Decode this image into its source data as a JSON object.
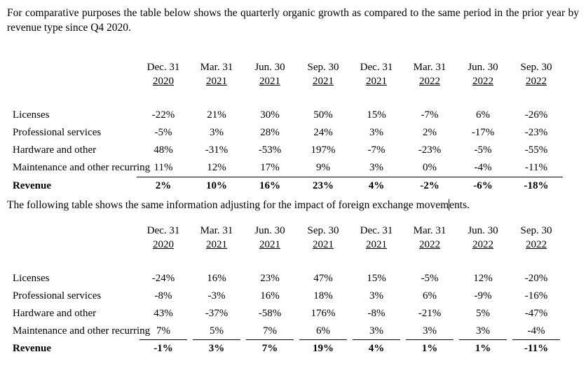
{
  "page": {
    "paragraph1": "For comparative purposes the table below shows the quarterly organic growth as compared to the same period in the prior year by revenue type since Q4 2020.",
    "paragraph2_before_caret": "The following table shows the same information adjusting for the impact of foreign exchange movem",
    "paragraph2_after_caret": "ents.",
    "text_color": "#000000",
    "background_color": "#ffffff"
  },
  "tables": [
    {
      "title": "quarterly-organic-growth",
      "rule_style": "continuous",
      "columns": [
        {
          "date": "Dec. 31",
          "year": "2020"
        },
        {
          "date": "Mar. 31",
          "year": "2021"
        },
        {
          "date": "Jun. 30",
          "year": "2021"
        },
        {
          "date": "Sep. 30",
          "year": "2021"
        },
        {
          "date": "Dec. 31",
          "year": "2021"
        },
        {
          "date": "Mar. 31",
          "year": "2022"
        },
        {
          "date": "Jun. 30",
          "year": "2022"
        },
        {
          "date": "Sep. 30",
          "year": "2022"
        }
      ],
      "rows": [
        {
          "label": "Licenses",
          "bold": false,
          "underline": false,
          "values": [
            "-22%",
            "21%",
            "30%",
            "50%",
            "15%",
            "-7%",
            "6%",
            "-26%"
          ]
        },
        {
          "label": "Professional services",
          "bold": false,
          "underline": false,
          "values": [
            "-5%",
            "3%",
            "28%",
            "24%",
            "3%",
            "2%",
            "-17%",
            "-23%"
          ]
        },
        {
          "label": "Hardware and other",
          "bold": false,
          "underline": false,
          "values": [
            "48%",
            "-31%",
            "-53%",
            "197%",
            "-7%",
            "-23%",
            "-5%",
            "-55%"
          ]
        },
        {
          "label": "Maintenance and other recurring",
          "bold": false,
          "underline": true,
          "values": [
            "11%",
            "12%",
            "17%",
            "9%",
            "3%",
            "0%",
            "-4%",
            "-11%"
          ]
        },
        {
          "label": "Revenue",
          "bold": true,
          "underline": false,
          "values": [
            "2%",
            "10%",
            "16%",
            "23%",
            "4%",
            "-2%",
            "-6%",
            "-18%"
          ]
        }
      ]
    },
    {
      "title": "quarterly-growth-fx-adjusted",
      "rule_style": "segmented",
      "columns": [
        {
          "date": "Dec. 31",
          "year": "2020"
        },
        {
          "date": "Mar. 31",
          "year": "2021"
        },
        {
          "date": "Jun. 30",
          "year": "2021"
        },
        {
          "date": "Sep. 30",
          "year": "2021"
        },
        {
          "date": "Dec. 31",
          "year": "2021"
        },
        {
          "date": "Mar. 31",
          "year": "2022"
        },
        {
          "date": "Jun. 30",
          "year": "2022"
        },
        {
          "date": "Sep. 30",
          "year": "2022"
        }
      ],
      "rows": [
        {
          "label": "Licenses",
          "bold": false,
          "underline": false,
          "values": [
            "-24%",
            "16%",
            "23%",
            "47%",
            "15%",
            "-5%",
            "12%",
            "-20%"
          ]
        },
        {
          "label": "Professional services",
          "bold": false,
          "underline": false,
          "values": [
            "-8%",
            "-3%",
            "16%",
            "18%",
            "3%",
            "6%",
            "-9%",
            "-16%"
          ]
        },
        {
          "label": "Hardware and other",
          "bold": false,
          "underline": false,
          "values": [
            "43%",
            "-37%",
            "-58%",
            "176%",
            "-8%",
            "-21%",
            "5%",
            "-47%"
          ]
        },
        {
          "label": "Maintenance and other recurring",
          "bold": false,
          "underline": true,
          "values": [
            "7%",
            "5%",
            "7%",
            "6%",
            "3%",
            "3%",
            "3%",
            "-4%"
          ]
        },
        {
          "label": "Revenue",
          "bold": true,
          "underline": false,
          "values": [
            "-1%",
            "3%",
            "7%",
            "19%",
            "4%",
            "1%",
            "1%",
            "-11%"
          ]
        }
      ]
    }
  ]
}
